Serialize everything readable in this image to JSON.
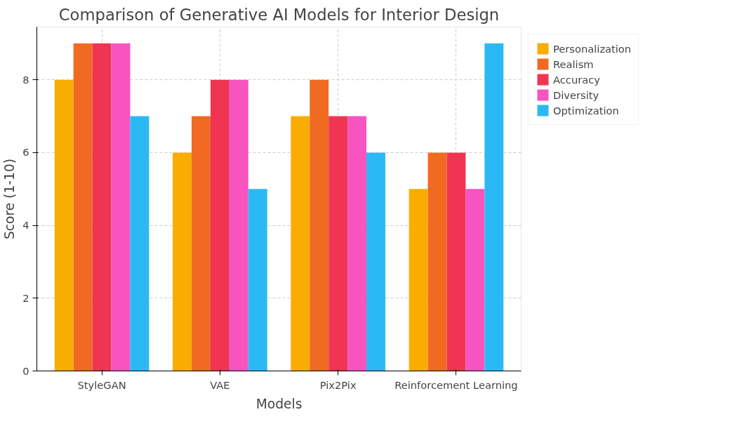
{
  "chart_data": {
    "type": "bar",
    "title": "Comparison of Generative AI Models for Interior Design",
    "xlabel": "Models",
    "ylabel": "Score (1-10)",
    "categories": [
      "StyleGAN",
      "VAE",
      "Pix2Pix",
      "Reinforcement Learning"
    ],
    "series": [
      {
        "name": "Personalization",
        "color": "#f9ad00",
        "values": [
          8,
          6,
          7,
          5
        ]
      },
      {
        "name": "Realism",
        "color": "#f06a22",
        "values": [
          9,
          7,
          8,
          6
        ]
      },
      {
        "name": "Accuracy",
        "color": "#ef3552",
        "values": [
          9,
          8,
          7,
          6
        ]
      },
      {
        "name": "Diversity",
        "color": "#f754c0",
        "values": [
          9,
          8,
          7,
          5
        ]
      },
      {
        "name": "Optimization",
        "color": "#2bb9f5",
        "values": [
          7,
          5,
          6,
          9
        ]
      }
    ],
    "ylim": [
      0,
      9.45
    ],
    "yticks": [
      0,
      2,
      4,
      6,
      8
    ],
    "grid": true,
    "legend": "top right"
  }
}
